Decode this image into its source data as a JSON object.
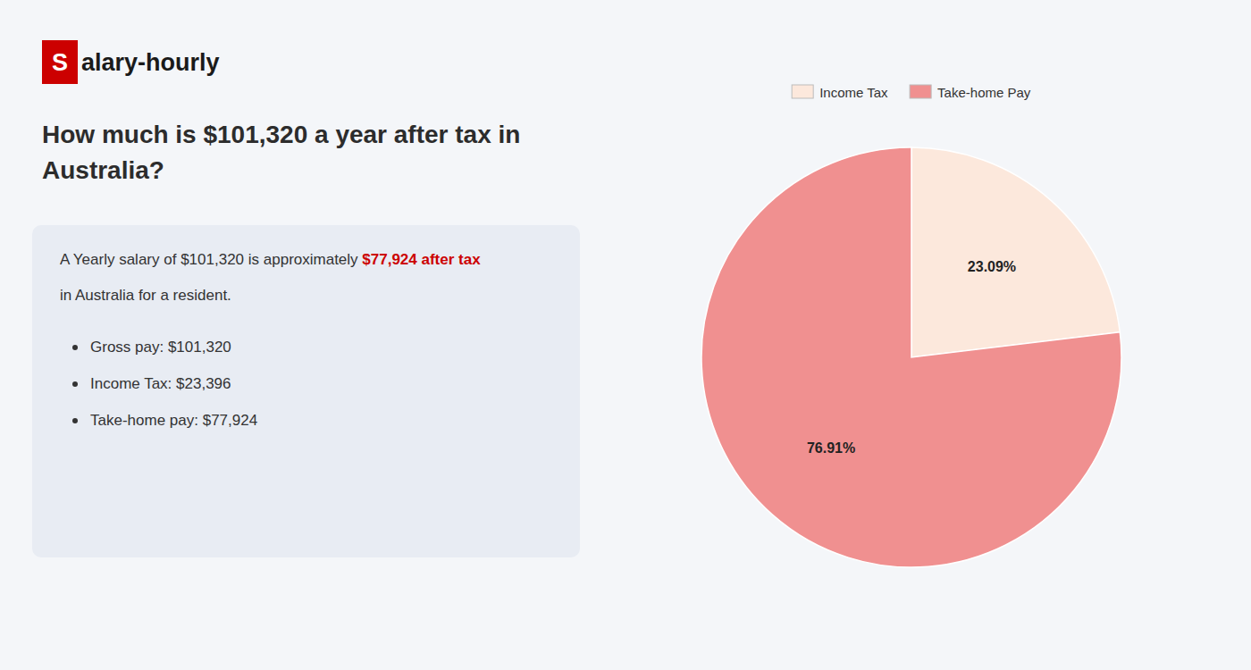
{
  "chart_data": {
    "type": "pie",
    "title": "How much is $101,320 a year after tax in\nAustralia?",
    "categories": [
      "Income Tax",
      "Take-home Pay"
    ],
    "values": [
      23.09,
      76.91
    ],
    "value_labels": [
      "23.09%",
      "76.91%"
    ],
    "colors": [
      "#fce8dc",
      "#f09090"
    ],
    "data_labels": true,
    "legend": "top",
    "annotations": [
      {
        "text": "S",
        "color": "#cc0000"
      },
      {
        "text": "alary-hourly",
        "color": "#1a1a1a"
      },
      {
        "text": "A Yearly salary of $101,320 is approximately ",
        "color": "#333333"
      },
      {
        "text": "$77,924 after tax",
        "color": "#cc0000"
      },
      {
        "text": "in Australia for a resident.",
        "color": "#333333"
      },
      {
        "text": "Gross pay: $101,320",
        "color": "#333333"
      },
      {
        "text": "Income Tax: $23,396",
        "color": "#333333"
      },
      {
        "text": "Take-home pay: $77,924",
        "color": "#333333"
      }
    ]
  }
}
